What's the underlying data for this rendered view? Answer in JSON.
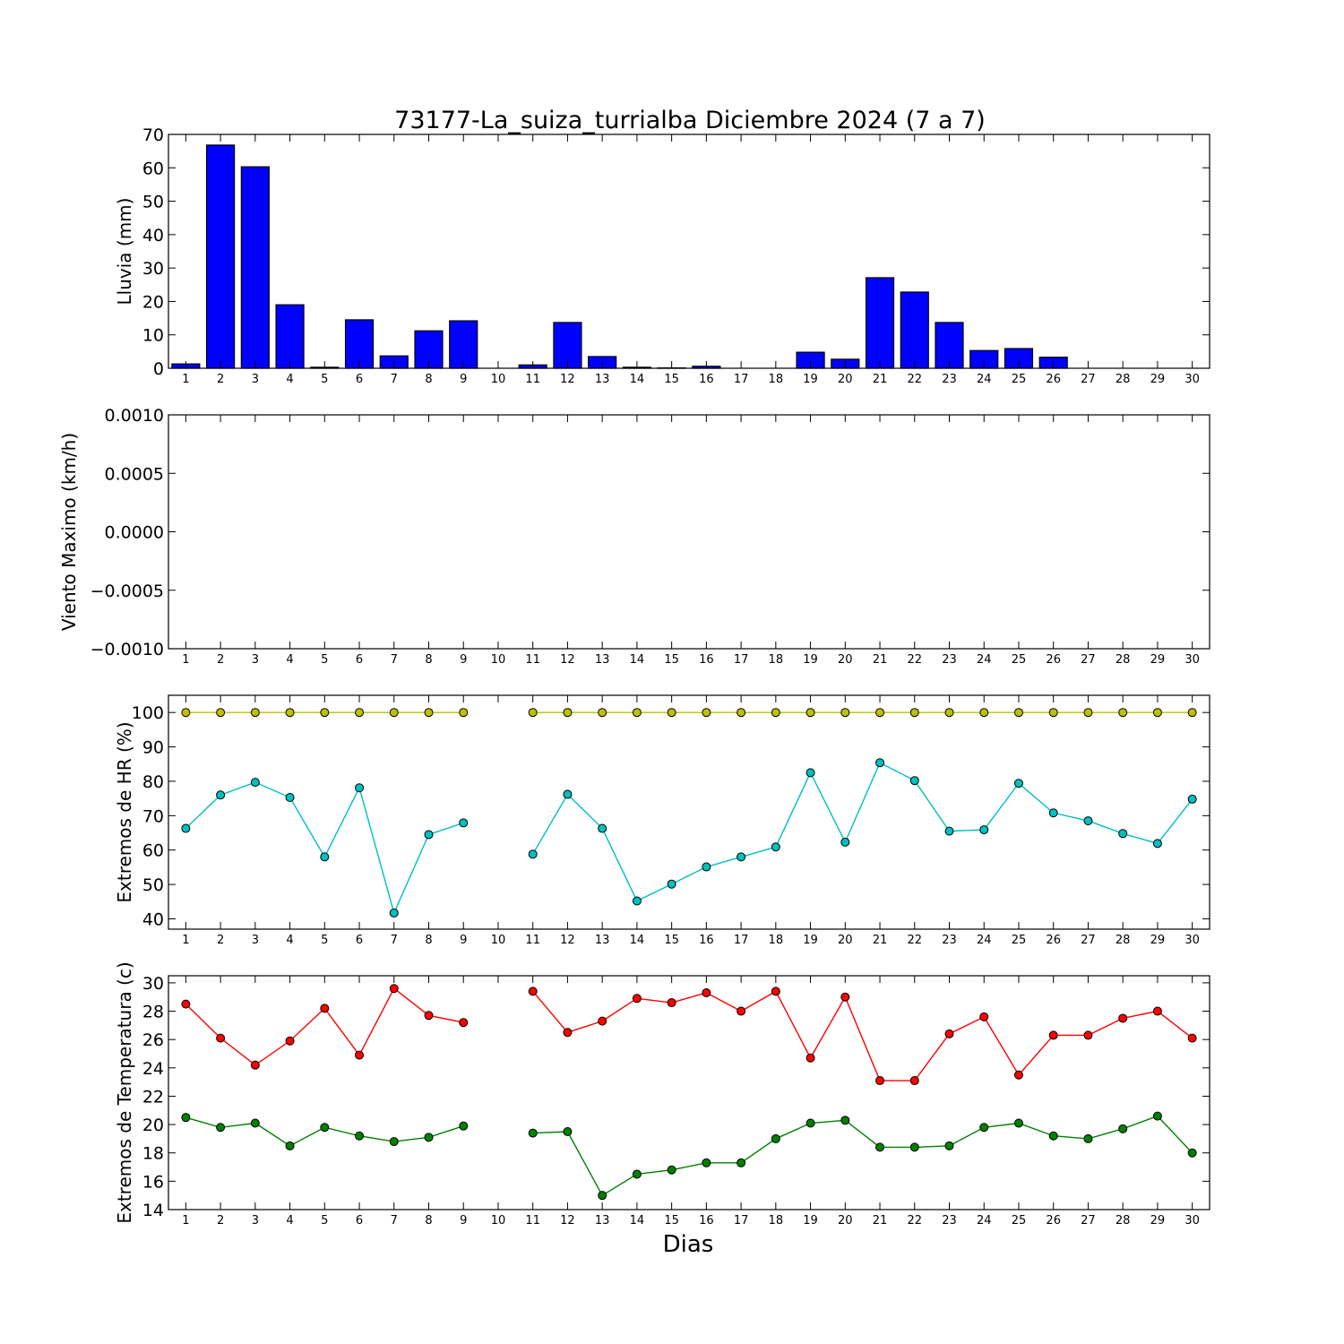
{
  "title": "73177-La_suiza_turrialba Diciembre 2024  (7 a 7)",
  "xlabel": "Dias",
  "days": [
    1,
    2,
    3,
    4,
    5,
    6,
    7,
    8,
    9,
    10,
    11,
    12,
    13,
    14,
    15,
    16,
    17,
    18,
    19,
    20,
    21,
    22,
    23,
    24,
    25,
    26,
    27,
    28,
    29,
    30
  ],
  "chart_data": [
    {
      "type": "bar",
      "ylabel": "Lluvia (mm)",
      "ylim": [
        0,
        70
      ],
      "yticks": [
        "0",
        "10",
        "20",
        "30",
        "40",
        "50",
        "60",
        "70"
      ],
      "color": "#0000ff",
      "categories": [
        1,
        2,
        3,
        4,
        5,
        6,
        7,
        8,
        9,
        10,
        11,
        12,
        13,
        14,
        15,
        16,
        17,
        18,
        19,
        20,
        21,
        22,
        23,
        24,
        25,
        26,
        27,
        28,
        29,
        30
      ],
      "values": [
        1.3,
        66.8,
        60.3,
        19.0,
        0.3,
        14.5,
        3.7,
        11.2,
        14.2,
        0,
        1.0,
        13.7,
        3.5,
        0.3,
        0.1,
        0.6,
        0,
        0,
        4.8,
        2.7,
        27.1,
        22.8,
        13.7,
        5.3,
        5.9,
        3.3,
        0,
        0,
        0,
        0
      ]
    },
    {
      "type": "line",
      "ylabel": "Viento Maximo (km/h)",
      "ylim": [
        -0.001,
        0.001
      ],
      "yticks": [
        "0.0010",
        "0.0005",
        "0.0000",
        "−0.0005",
        "−0.0010"
      ],
      "x": [
        1,
        2,
        3,
        4,
        5,
        6,
        7,
        8,
        9,
        10,
        11,
        12,
        13,
        14,
        15,
        16,
        17,
        18,
        19,
        20,
        21,
        22,
        23,
        24,
        25,
        26,
        27,
        28,
        29,
        30
      ],
      "series": []
    },
    {
      "type": "line",
      "ylabel": "Extremos de HR (%)",
      "ylim": [
        37,
        105
      ],
      "yticks": [
        "40",
        "50",
        "60",
        "70",
        "80",
        "90",
        "100"
      ],
      "x": [
        1,
        2,
        3,
        4,
        5,
        6,
        7,
        8,
        9,
        10,
        11,
        12,
        13,
        14,
        15,
        16,
        17,
        18,
        19,
        20,
        21,
        22,
        23,
        24,
        25,
        26,
        27,
        28,
        29,
        30
      ],
      "series": [
        {
          "color": "#bfbf00",
          "values": [
            100,
            100,
            100,
            100,
            100,
            100,
            100,
            100,
            100,
            null,
            100,
            100,
            100,
            100,
            100,
            100,
            100,
            100,
            100,
            100,
            100,
            100,
            100,
            100,
            100,
            100,
            100,
            100,
            100,
            100
          ]
        },
        {
          "color": "#00bfbf",
          "values": [
            66.3,
            76.0,
            79.7,
            75.3,
            58.0,
            78.1,
            41.7,
            64.5,
            67.9,
            null,
            58.8,
            76.2,
            66.3,
            45.2,
            50.1,
            55.1,
            58.0,
            60.9,
            82.5,
            62.3,
            85.4,
            80.2,
            65.5,
            65.9,
            79.4,
            70.8,
            68.5,
            64.8,
            61.9,
            74.8
          ]
        }
      ]
    },
    {
      "type": "line",
      "ylabel": "Extremos de Temperatura (c)",
      "ylim": [
        14,
        30.5
      ],
      "yticks": [
        "14",
        "16",
        "18",
        "20",
        "22",
        "24",
        "26",
        "28",
        "30"
      ],
      "x": [
        1,
        2,
        3,
        4,
        5,
        6,
        7,
        8,
        9,
        10,
        11,
        12,
        13,
        14,
        15,
        16,
        17,
        18,
        19,
        20,
        21,
        22,
        23,
        24,
        25,
        26,
        27,
        28,
        29,
        30
      ],
      "series": [
        {
          "color": "#ff0000",
          "values": [
            28.5,
            26.1,
            24.2,
            25.9,
            28.2,
            24.9,
            29.6,
            27.7,
            27.2,
            null,
            29.4,
            26.5,
            27.3,
            28.9,
            28.6,
            29.3,
            28.0,
            29.4,
            24.7,
            29.0,
            23.1,
            23.1,
            26.4,
            27.6,
            23.5,
            26.3,
            26.3,
            27.5,
            28.0,
            26.1
          ]
        },
        {
          "color": "#008000",
          "values": [
            20.5,
            19.8,
            20.1,
            18.5,
            19.8,
            19.2,
            18.8,
            19.1,
            19.9,
            null,
            19.4,
            19.5,
            15.0,
            16.5,
            16.8,
            17.3,
            17.3,
            19.0,
            20.1,
            20.3,
            18.4,
            18.4,
            18.5,
            19.8,
            20.1,
            19.2,
            19.0,
            19.7,
            20.6,
            18.0
          ]
        }
      ]
    }
  ]
}
